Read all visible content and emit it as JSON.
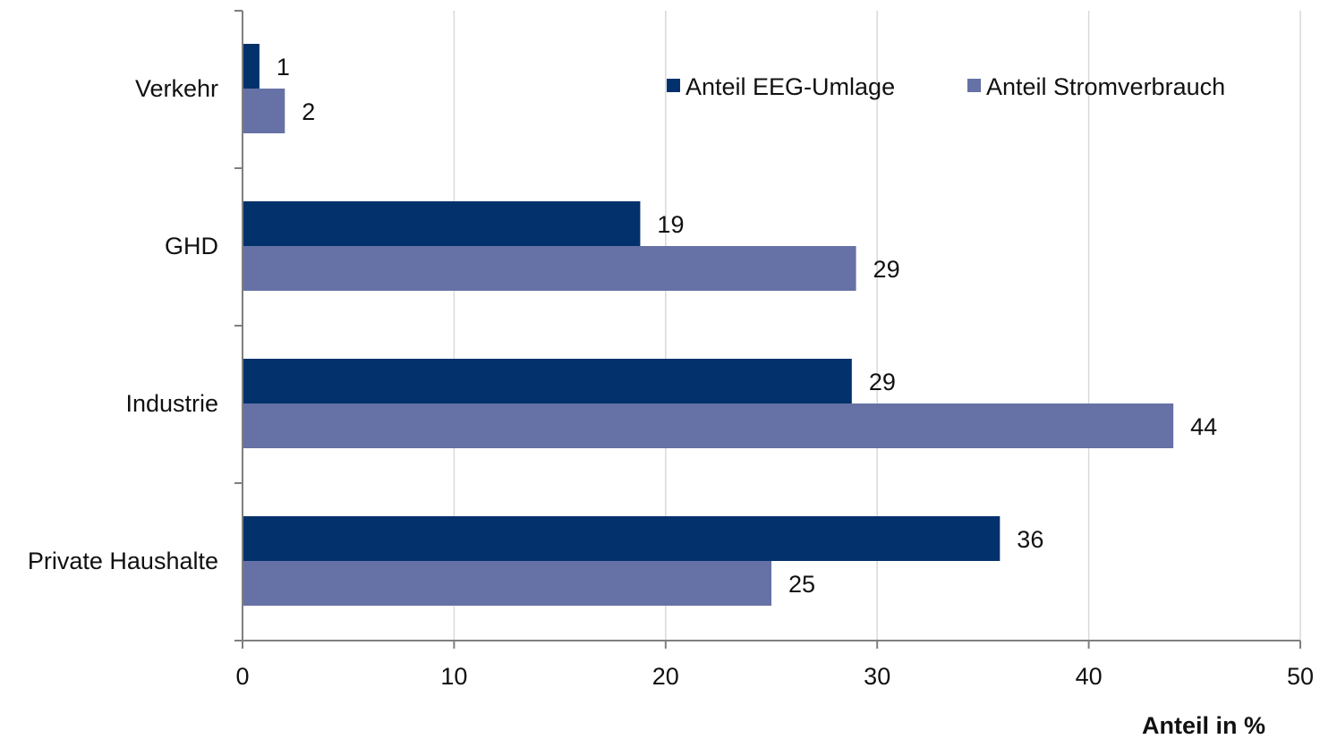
{
  "chart_data": {
    "type": "bar",
    "orientation": "horizontal",
    "categories": [
      "Verkehr",
      "GHD",
      "Industrie",
      "Private Haushalte"
    ],
    "series": [
      {
        "name": "Anteil EEG-Umlage",
        "values": [
          1,
          19,
          29,
          36
        ],
        "color": "#03316c"
      },
      {
        "name": "Anteil Stromverbrauch",
        "values": [
          2,
          29,
          44,
          25
        ],
        "color": "#6671a5"
      }
    ],
    "bar_lengths": [
      [
        0.8,
        18.8,
        28.8,
        35.8
      ],
      [
        2.0,
        29.0,
        44.0,
        25.0
      ]
    ],
    "xlabel": "Anteil in %",
    "ylabel": "",
    "xlim": [
      0,
      50
    ],
    "x_ticks": [
      0,
      10,
      20,
      30,
      40,
      50
    ],
    "grid": "vertical",
    "legend_position": "top-right",
    "gridline_color": "#d9d9d9",
    "axis_color": "#7f7f7f"
  }
}
